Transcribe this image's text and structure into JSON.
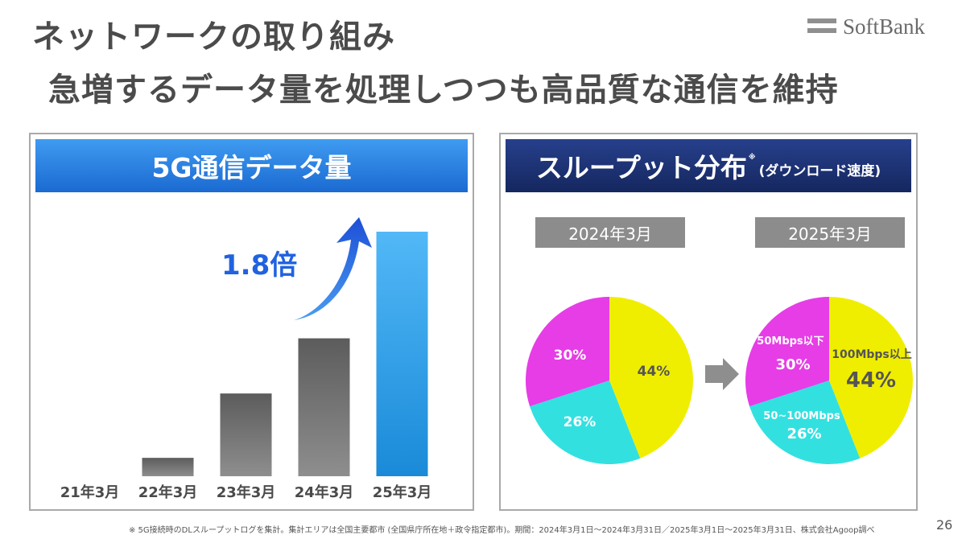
{
  "title_line1": "ネットワークの取り組み",
  "title_line2": "急増するデータ量を処理しつつも高品質な通信を維持",
  "logo_text": "SoftBank",
  "left_panel": {
    "header": "5G通信データ量",
    "growth_label": "1.8倍"
  },
  "right_panel": {
    "header": "スループット分布",
    "header_note": "※",
    "header_sub": "(ダウンロード速度)",
    "date_2024": "2024年3月",
    "date_2025": "2025年3月"
  },
  "footnote": "※ 5G接続時のDLスループットログを集計。集計エリアは全国主要都市 (全国県庁所在地＋政令指定都市)。期間：2024年3月1日～2024年3月31日／2025年3月1日～2025年3月31日、株式会社Agoop調べ",
  "page_number": "26",
  "colors": {
    "bar_gray": "#6b6b6b",
    "bar_blue": "#2fa2ea",
    "arrow_blue": "#2062e0",
    "pie_yellow": "#f0ee00",
    "pie_cyan": "#33e0e0",
    "pie_magenta": "#e63de6"
  },
  "chart_data": [
    {
      "type": "bar",
      "title": "5G通信データ量",
      "categories": [
        "21年3月",
        "22年3月",
        "23年3月",
        "24年3月",
        "25年3月"
      ],
      "values": [
        0,
        10,
        45,
        75,
        133
      ],
      "annotation": "1.8倍",
      "ylim": [
        0,
        140
      ],
      "grid": false
    },
    {
      "type": "pie",
      "title": "2024年3月",
      "labels": [
        "",
        "",
        ""
      ],
      "values": [
        44,
        26,
        30
      ],
      "value_labels": [
        "44%",
        "26%",
        "30%"
      ]
    },
    {
      "type": "pie",
      "title": "2025年3月",
      "labels": [
        "100Mbps以上",
        "50~100Mbps",
        "50Mbps以下"
      ],
      "values": [
        44,
        26,
        30
      ],
      "value_labels": [
        "44%",
        "26%",
        "30%"
      ]
    }
  ]
}
